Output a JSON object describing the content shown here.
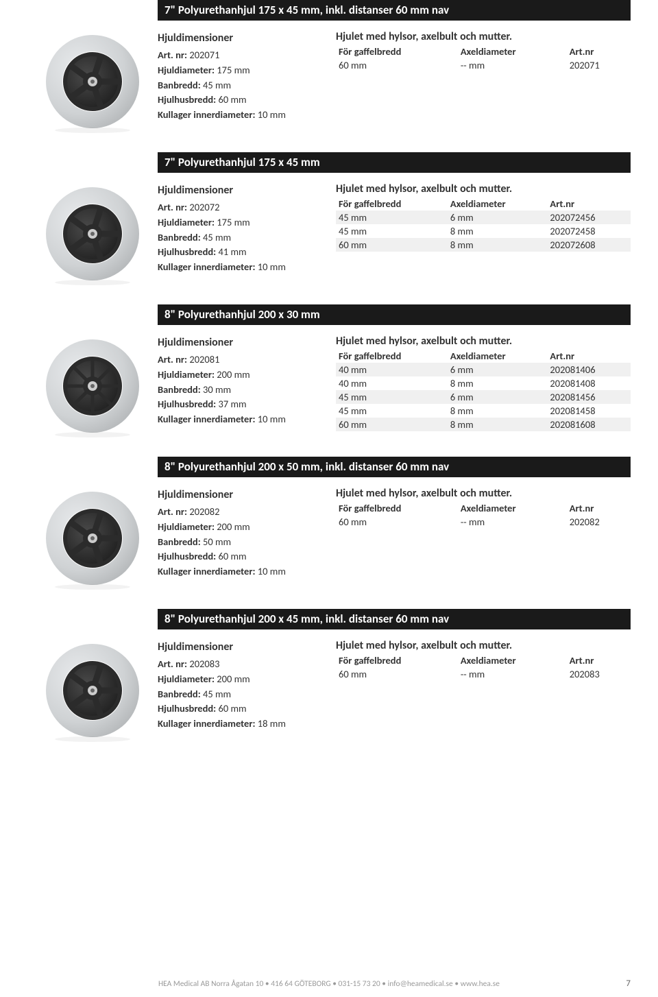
{
  "labels": {
    "dimensions_head": "Hjuldimensioner",
    "art_nr": "Art. nr:",
    "diameter": "Hjuldiameter:",
    "banbredd": "Banbredd:",
    "husbredd": "Hjulhusbredd:",
    "kullager": "Kullager innerdiameter:",
    "table_head": "Hjulet med hylsor, axelbult och mutter.",
    "col_gaffel": "För gaffelbredd",
    "col_axel": "Axeldiameter",
    "col_artnr": "Art.nr"
  },
  "products": [
    {
      "title": "7\" Polyurethanhjul 175 x 45 mm, inkl. distanser 60 mm nav",
      "image_type": "5spoke",
      "art_nr": "202071",
      "diameter": "175 mm",
      "banbredd": "45 mm",
      "husbredd": "60 mm",
      "kullager": "10 mm",
      "rows": [
        {
          "gaffel": "60 mm",
          "axel": "-- mm",
          "artnr": "202071",
          "shade": false
        }
      ]
    },
    {
      "title": "7\" Polyurethanhjul 175 x 45 mm",
      "image_type": "5spoke",
      "art_nr": "202072",
      "diameter": "175 mm",
      "banbredd": "45 mm",
      "husbredd": "41 mm",
      "kullager": "10 mm",
      "rows": [
        {
          "gaffel": "45 mm",
          "axel": "6 mm",
          "artnr": "202072456",
          "shade": true
        },
        {
          "gaffel": "45 mm",
          "axel": "8 mm",
          "artnr": "202072458",
          "shade": false
        },
        {
          "gaffel": "60 mm",
          "axel": "8 mm",
          "artnr": "202072608",
          "shade": true
        }
      ]
    },
    {
      "title": "8\" Polyurethanhjul 200 x 30 mm",
      "image_type": "8spoke",
      "art_nr": "202081",
      "diameter": "200 mm",
      "banbredd": "30 mm",
      "husbredd": "37 mm",
      "kullager": "10 mm",
      "rows": [
        {
          "gaffel": "40 mm",
          "axel": "6 mm",
          "artnr": "202081406",
          "shade": true
        },
        {
          "gaffel": "40 mm",
          "axel": "8 mm",
          "artnr": "202081408",
          "shade": false
        },
        {
          "gaffel": "45 mm",
          "axel": "6 mm",
          "artnr": "202081456",
          "shade": true
        },
        {
          "gaffel": "45 mm",
          "axel": "8 mm",
          "artnr": "202081458",
          "shade": false
        },
        {
          "gaffel": "60 mm",
          "axel": "8 mm",
          "artnr": "202081608",
          "shade": true
        }
      ]
    },
    {
      "title": "8\" Polyurethanhjul 200 x 50 mm, inkl. distanser 60 mm nav",
      "image_type": "5spoke",
      "art_nr": "202082",
      "diameter": "200 mm",
      "banbredd": "50 mm",
      "husbredd": "60 mm",
      "kullager": "10 mm",
      "rows": [
        {
          "gaffel": "60 mm",
          "axel": "-- mm",
          "artnr": "202082",
          "shade": false
        }
      ]
    },
    {
      "title": "8\" Polyurethanhjul 200 x 45 mm, inkl. distanser 60 mm nav",
      "image_type": "5spoke",
      "art_nr": "202083",
      "diameter": "200 mm",
      "banbredd": "45 mm",
      "husbredd": "60 mm",
      "kullager": "18 mm",
      "rows": [
        {
          "gaffel": "60 mm",
          "axel": "-- mm",
          "artnr": "202083",
          "shade": false
        }
      ]
    }
  ],
  "footer": {
    "text": "HEA Medical AB Norra Ågatan 10 • 416 64 GÖTEBORG • 031-15 73 20 • info@heamedical.se • www.hea.se",
    "page_number": "7"
  },
  "styling": {
    "title_bar_bg": "#1a1a1a",
    "title_bar_fg": "#ffffff",
    "shade_row_bg": "#f0f0f0",
    "body_fontsize": 14.5,
    "head_fontsize": 16,
    "footer_color": "#999999",
    "wheel_tire_color": "#cfd2d4",
    "wheel_rim_color": "#2b2b2b",
    "wheel_hub_color": "#888888"
  }
}
